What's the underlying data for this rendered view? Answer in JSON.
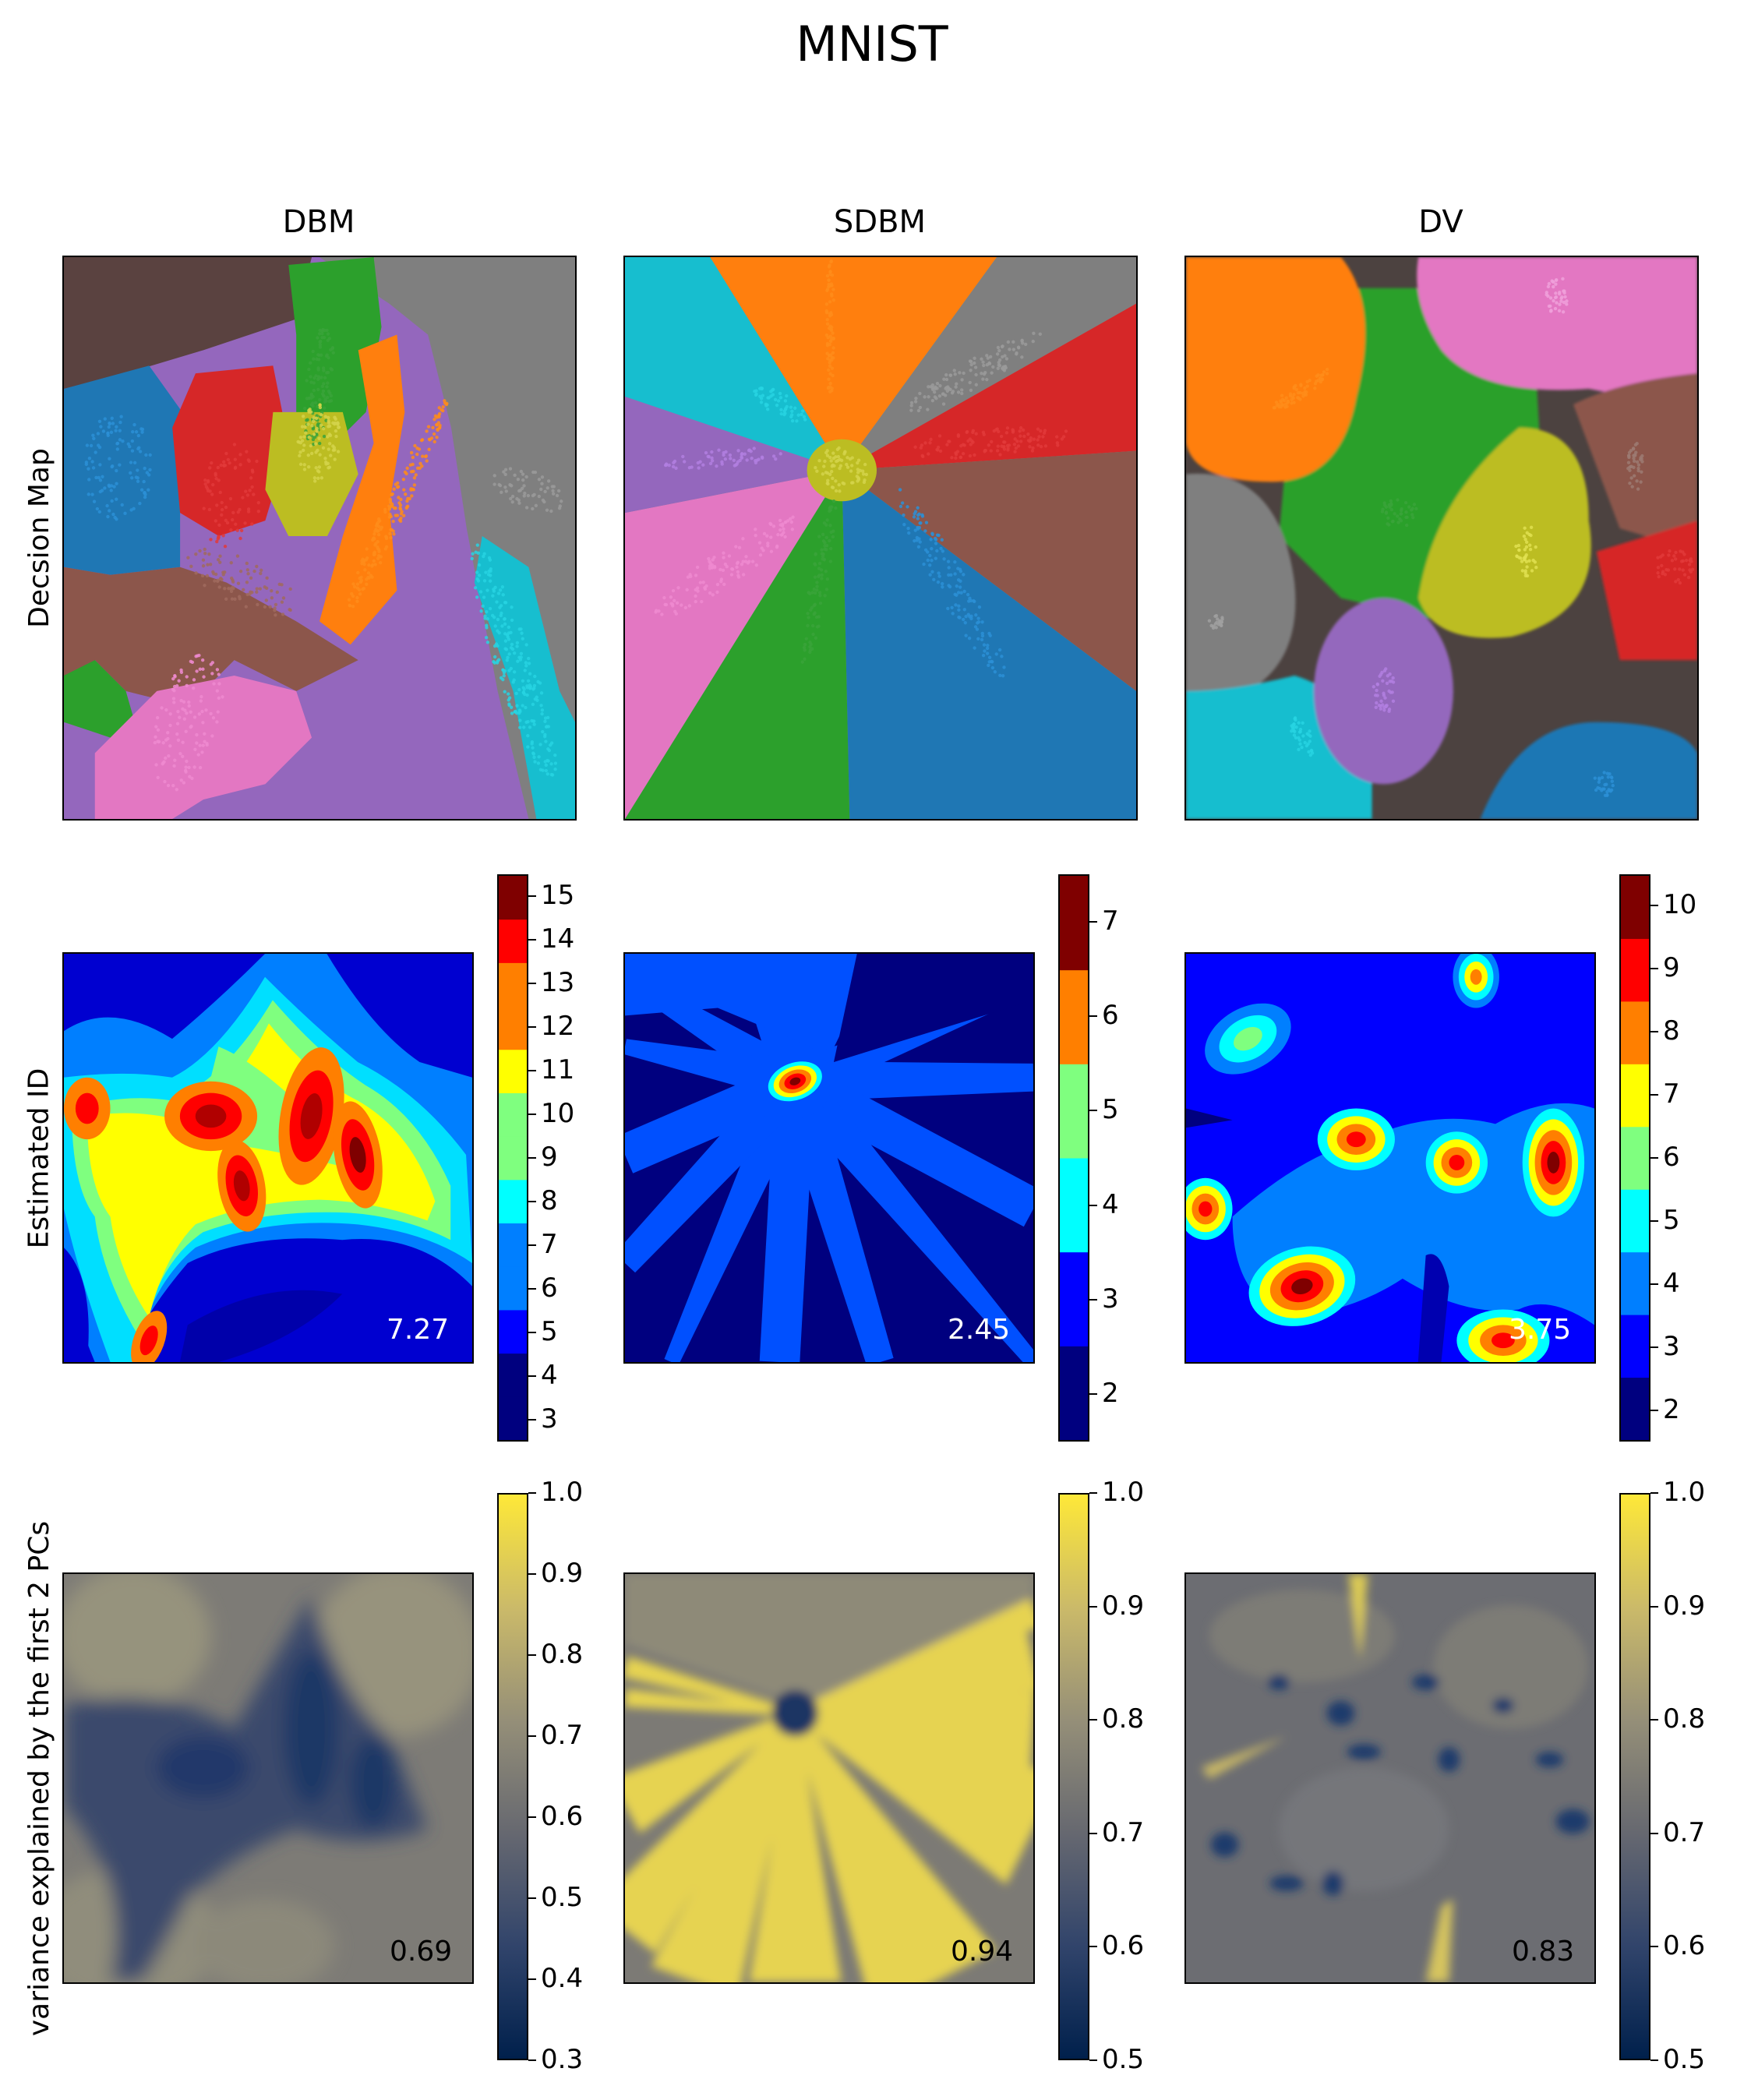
{
  "title": "MNIST",
  "columns": [
    "DBM",
    "SDBM",
    "DV"
  ],
  "rows": [
    "Decsion Map",
    "Estimated ID",
    "variance explained by the first 2 PCs"
  ],
  "colors": {
    "tab10": [
      "#1f77b4",
      "#ff7f0e",
      "#2ca02c",
      "#d62728",
      "#9467bd",
      "#8c564b",
      "#e377c2",
      "#7f7f7f",
      "#bcbd22",
      "#17becf"
    ],
    "jet": [
      "#00007f",
      "#0000ff",
      "#007fff",
      "#00ffff",
      "#7fff7f",
      "#ffff00",
      "#ff7f00",
      "#ff0000",
      "#7f0000"
    ],
    "cividis": [
      "#00204c",
      "#31446b",
      "#666870",
      "#958f78",
      "#cbba69",
      "#fee838"
    ]
  },
  "chart_data": [
    {
      "type": "heatmap",
      "row": "Decsion Map",
      "panels": [
        {
          "column": "DBM",
          "colormap": "tab10",
          "description_regions": 10
        },
        {
          "column": "SDBM",
          "colormap": "tab10",
          "description_regions": 10
        },
        {
          "column": "DV",
          "colormap": "tab10",
          "description_regions": 10
        }
      ]
    },
    {
      "type": "heatmap",
      "row": "Estimated ID",
      "panels": [
        {
          "column": "DBM",
          "colormap": "jet",
          "mean_label": "7.27",
          "colorbar_range": [
            2.5,
            15.5
          ],
          "colorbar_ticks": [
            "3",
            "4",
            "5",
            "6",
            "7",
            "8",
            "9",
            "10",
            "11",
            "12",
            "13",
            "14",
            "15"
          ]
        },
        {
          "column": "SDBM",
          "colormap": "jet",
          "mean_label": "2.45",
          "colorbar_range": [
            1.5,
            7.5
          ],
          "colorbar_ticks": [
            "2",
            "3",
            "4",
            "5",
            "6",
            "7"
          ]
        },
        {
          "column": "DV",
          "colormap": "jet",
          "mean_label": "3.75",
          "colorbar_range": [
            1.5,
            10.5
          ],
          "colorbar_ticks": [
            "2",
            "3",
            "4",
            "5",
            "6",
            "7",
            "8",
            "9",
            "10"
          ]
        }
      ]
    },
    {
      "type": "heatmap",
      "row": "variance explained by the first 2 PCs",
      "panels": [
        {
          "column": "DBM",
          "colormap": "cividis",
          "mean_label": "0.69",
          "colorbar_range": [
            0.3,
            1.0
          ],
          "colorbar_ticks": [
            "0.3",
            "0.4",
            "0.5",
            "0.6",
            "0.7",
            "0.8",
            "0.9",
            "1.0"
          ]
        },
        {
          "column": "SDBM",
          "colormap": "cividis",
          "mean_label": "0.94",
          "colorbar_range": [
            0.5,
            1.0
          ],
          "colorbar_ticks": [
            "0.5",
            "0.6",
            "0.7",
            "0.8",
            "0.9",
            "1.0"
          ]
        },
        {
          "column": "DV",
          "colormap": "cividis",
          "mean_label": "0.83",
          "colorbar_range": [
            0.5,
            1.0
          ],
          "colorbar_ticks": [
            "0.5",
            "0.6",
            "0.7",
            "0.8",
            "0.9",
            "1.0"
          ]
        }
      ]
    }
  ]
}
